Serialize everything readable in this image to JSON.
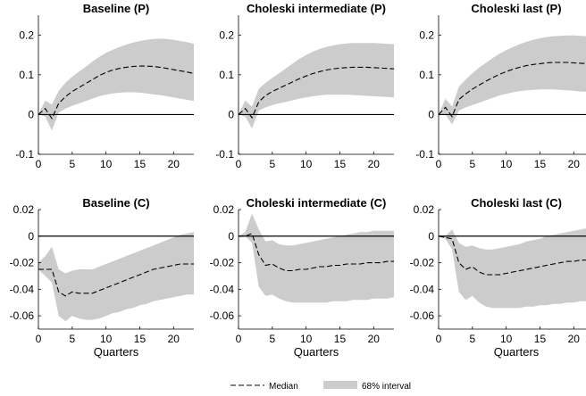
{
  "chart_data": [
    {
      "type": "area",
      "title": "Baseline (P)",
      "xlabel": "",
      "xlim": [
        0,
        23
      ],
      "ylim": [
        -0.1,
        0.25
      ],
      "xticks": [
        0,
        5,
        10,
        15,
        20
      ],
      "yticks": [
        -0.1,
        0,
        0.1,
        0.2
      ],
      "ytick_labels": [
        "-0.1",
        "0",
        "0.1",
        "0.2"
      ],
      "zero_line": true,
      "x": [
        0,
        1,
        2,
        3,
        4,
        5,
        6,
        7,
        8,
        9,
        10,
        11,
        12,
        13,
        14,
        15,
        16,
        17,
        18,
        19,
        20,
        21,
        22,
        23
      ],
      "series": [
        {
          "role": "median",
          "values": [
            0,
            0.015,
            -0.01,
            0.028,
            0.045,
            0.058,
            0.068,
            0.078,
            0.088,
            0.098,
            0.106,
            0.112,
            0.116,
            0.119,
            0.121,
            0.122,
            0.122,
            0.121,
            0.119,
            0.116,
            0.113,
            0.11,
            0.107,
            0.103
          ]
        },
        {
          "role": "lower",
          "values": [
            0,
            -0.005,
            -0.04,
            0.005,
            0.015,
            0.022,
            0.028,
            0.034,
            0.04,
            0.046,
            0.05,
            0.053,
            0.055,
            0.056,
            0.056,
            0.055,
            0.053,
            0.051,
            0.049,
            0.046,
            0.043,
            0.04,
            0.037,
            0.034
          ]
        },
        {
          "role": "upper",
          "values": [
            0,
            0.035,
            0.025,
            0.06,
            0.08,
            0.095,
            0.108,
            0.12,
            0.133,
            0.145,
            0.155,
            0.163,
            0.17,
            0.176,
            0.181,
            0.185,
            0.188,
            0.19,
            0.191,
            0.19,
            0.188,
            0.185,
            0.182,
            0.178
          ]
        }
      ]
    },
    {
      "type": "area",
      "title": "Choleski intermediate (P)",
      "xlabel": "",
      "xlim": [
        0,
        23
      ],
      "ylim": [
        -0.1,
        0.25
      ],
      "xticks": [
        0,
        5,
        10,
        15,
        20
      ],
      "yticks": [
        -0.1,
        0,
        0.1,
        0.2
      ],
      "ytick_labels": [
        "-0.1",
        "0",
        "0.1",
        "0.2"
      ],
      "zero_line": true,
      "x": [
        0,
        1,
        2,
        3,
        4,
        5,
        6,
        7,
        8,
        9,
        10,
        11,
        12,
        13,
        14,
        15,
        16,
        17,
        18,
        19,
        20,
        21,
        22,
        23
      ],
      "series": [
        {
          "role": "median",
          "values": [
            0,
            0.015,
            -0.008,
            0.032,
            0.048,
            0.058,
            0.066,
            0.074,
            0.082,
            0.09,
            0.097,
            0.103,
            0.108,
            0.112,
            0.115,
            0.117,
            0.118,
            0.119,
            0.119,
            0.119,
            0.118,
            0.117,
            0.116,
            0.115
          ]
        },
        {
          "role": "lower",
          "values": [
            0,
            -0.005,
            -0.035,
            0.01,
            0.018,
            0.024,
            0.028,
            0.032,
            0.036,
            0.04,
            0.043,
            0.046,
            0.048,
            0.05,
            0.05,
            0.05,
            0.05,
            0.049,
            0.048,
            0.047,
            0.046,
            0.045,
            0.044,
            0.043
          ]
        },
        {
          "role": "upper",
          "values": [
            0,
            0.035,
            0.02,
            0.065,
            0.08,
            0.092,
            0.104,
            0.116,
            0.128,
            0.14,
            0.15,
            0.158,
            0.165,
            0.17,
            0.174,
            0.177,
            0.179,
            0.18,
            0.18,
            0.18,
            0.18,
            0.179,
            0.178,
            0.177
          ]
        }
      ]
    },
    {
      "type": "area",
      "title": "Choleski last (P)",
      "xlabel": "",
      "xlim": [
        0,
        23
      ],
      "ylim": [
        -0.1,
        0.25
      ],
      "xticks": [
        0,
        5,
        10,
        15,
        20
      ],
      "yticks": [
        -0.1,
        0,
        0.1,
        0.2
      ],
      "ytick_labels": [
        "-0.1",
        "0",
        "0.1",
        "0.2"
      ],
      "zero_line": true,
      "x": [
        0,
        1,
        2,
        3,
        4,
        5,
        6,
        7,
        8,
        9,
        10,
        11,
        12,
        13,
        14,
        15,
        16,
        17,
        18,
        19,
        20,
        21,
        22,
        23
      ],
      "series": [
        {
          "role": "median",
          "values": [
            0,
            0.018,
            -0.005,
            0.038,
            0.052,
            0.064,
            0.074,
            0.084,
            0.093,
            0.101,
            0.108,
            0.114,
            0.119,
            0.123,
            0.126,
            0.128,
            0.13,
            0.131,
            0.131,
            0.131,
            0.13,
            0.129,
            0.128,
            0.127
          ]
        },
        {
          "role": "lower",
          "values": [
            0,
            0.0,
            -0.025,
            0.01,
            0.018,
            0.024,
            0.03,
            0.036,
            0.042,
            0.048,
            0.052,
            0.056,
            0.059,
            0.061,
            0.062,
            0.063,
            0.063,
            0.063,
            0.062,
            0.061,
            0.06,
            0.058,
            0.057,
            0.055
          ]
        },
        {
          "role": "upper",
          "values": [
            0,
            0.04,
            0.02,
            0.07,
            0.088,
            0.104,
            0.118,
            0.13,
            0.142,
            0.153,
            0.162,
            0.17,
            0.177,
            0.183,
            0.188,
            0.192,
            0.195,
            0.197,
            0.198,
            0.199,
            0.199,
            0.198,
            0.197,
            0.196
          ]
        }
      ]
    },
    {
      "type": "area",
      "title": "Baseline (C)",
      "xlabel": "Quarters",
      "xlim": [
        0,
        23
      ],
      "ylim": [
        -0.07,
        0.02
      ],
      "xticks": [
        0,
        5,
        10,
        15,
        20
      ],
      "yticks": [
        -0.06,
        -0.04,
        -0.02,
        0,
        0.02
      ],
      "ytick_labels": [
        "-0.06",
        "-0.04",
        "-0.02",
        "0",
        "0.02"
      ],
      "zero_line": true,
      "x": [
        0,
        1,
        2,
        3,
        4,
        5,
        6,
        7,
        8,
        9,
        10,
        11,
        12,
        13,
        14,
        15,
        16,
        17,
        18,
        19,
        20,
        21,
        22,
        23
      ],
      "series": [
        {
          "role": "median",
          "values": [
            -0.025,
            -0.025,
            -0.025,
            -0.042,
            -0.045,
            -0.042,
            -0.043,
            -0.043,
            -0.043,
            -0.041,
            -0.039,
            -0.037,
            -0.035,
            -0.033,
            -0.031,
            -0.029,
            -0.027,
            -0.025,
            -0.024,
            -0.023,
            -0.022,
            -0.021,
            -0.021,
            -0.021
          ]
        },
        {
          "role": "lower",
          "values": [
            -0.025,
            -0.03,
            -0.035,
            -0.06,
            -0.064,
            -0.06,
            -0.062,
            -0.063,
            -0.063,
            -0.062,
            -0.06,
            -0.058,
            -0.057,
            -0.055,
            -0.054,
            -0.052,
            -0.051,
            -0.049,
            -0.048,
            -0.047,
            -0.046,
            -0.045,
            -0.044,
            -0.044
          ]
        },
        {
          "role": "upper",
          "values": [
            -0.02,
            -0.015,
            -0.008,
            -0.025,
            -0.028,
            -0.026,
            -0.025,
            -0.025,
            -0.025,
            -0.023,
            -0.021,
            -0.019,
            -0.017,
            -0.015,
            -0.013,
            -0.011,
            -0.009,
            -0.007,
            -0.005,
            -0.003,
            -0.001,
            0.001,
            0.002,
            0.003
          ]
        }
      ]
    },
    {
      "type": "area",
      "title": "Choleski intermediate (C)",
      "xlabel": "Quarters",
      "xlim": [
        0,
        23
      ],
      "ylim": [
        -0.07,
        0.02
      ],
      "xticks": [
        0,
        5,
        10,
        15,
        20
      ],
      "yticks": [
        -0.06,
        -0.04,
        -0.02,
        0,
        0.02
      ],
      "ytick_labels": [
        "-0.06",
        "-0.04",
        "-0.02",
        "0",
        "0.02"
      ],
      "zero_line": true,
      "x": [
        0,
        1,
        2,
        3,
        4,
        5,
        6,
        7,
        8,
        9,
        10,
        11,
        12,
        13,
        14,
        15,
        16,
        17,
        18,
        19,
        20,
        21,
        22,
        23
      ],
      "series": [
        {
          "role": "median",
          "values": [
            0,
            0.0,
            0.002,
            -0.014,
            -0.022,
            -0.021,
            -0.024,
            -0.026,
            -0.026,
            -0.025,
            -0.025,
            -0.024,
            -0.023,
            -0.023,
            -0.022,
            -0.022,
            -0.021,
            -0.021,
            -0.021,
            -0.02,
            -0.02,
            -0.02,
            -0.019,
            -0.019
          ]
        },
        {
          "role": "lower",
          "values": [
            0,
            0.0,
            -0.005,
            -0.038,
            -0.045,
            -0.044,
            -0.047,
            -0.049,
            -0.05,
            -0.05,
            -0.05,
            -0.05,
            -0.05,
            -0.05,
            -0.049,
            -0.049,
            -0.049,
            -0.048,
            -0.048,
            -0.048,
            -0.047,
            -0.047,
            -0.047,
            -0.046
          ]
        },
        {
          "role": "upper",
          "values": [
            0,
            0.003,
            0.017,
            0.005,
            -0.004,
            -0.003,
            -0.006,
            -0.007,
            -0.007,
            -0.006,
            -0.005,
            -0.004,
            -0.003,
            -0.002,
            -0.001,
            0.0,
            0.001,
            0.002,
            0.003,
            0.003,
            0.004,
            0.004,
            0.004,
            0.004
          ]
        }
      ]
    },
    {
      "type": "area",
      "title": "Choleski last (C)",
      "xlabel": "Quarters",
      "xlim": [
        0,
        23
      ],
      "ylim": [
        -0.07,
        0.02
      ],
      "xticks": [
        0,
        5,
        10,
        15,
        20
      ],
      "yticks": [
        -0.06,
        -0.04,
        -0.02,
        0,
        0.02
      ],
      "ytick_labels": [
        "-0.06",
        "-0.04",
        "-0.02",
        "0",
        "0.02"
      ],
      "zero_line": true,
      "x": [
        0,
        1,
        2,
        3,
        4,
        5,
        6,
        7,
        8,
        9,
        10,
        11,
        12,
        13,
        14,
        15,
        16,
        17,
        18,
        19,
        20,
        21,
        22,
        23
      ],
      "series": [
        {
          "role": "median",
          "values": [
            0,
            -0.001,
            -0.002,
            -0.02,
            -0.025,
            -0.023,
            -0.027,
            -0.029,
            -0.029,
            -0.029,
            -0.028,
            -0.027,
            -0.026,
            -0.025,
            -0.024,
            -0.023,
            -0.022,
            -0.021,
            -0.02,
            -0.019,
            -0.019,
            -0.018,
            -0.018,
            -0.018
          ]
        },
        {
          "role": "lower",
          "values": [
            0,
            -0.002,
            -0.01,
            -0.042,
            -0.048,
            -0.045,
            -0.05,
            -0.053,
            -0.054,
            -0.054,
            -0.054,
            -0.054,
            -0.054,
            -0.053,
            -0.053,
            -0.052,
            -0.052,
            -0.051,
            -0.051,
            -0.05,
            -0.05,
            -0.049,
            -0.049,
            -0.049
          ]
        },
        {
          "role": "upper",
          "values": [
            0,
            0.0,
            0.005,
            -0.005,
            -0.008,
            -0.007,
            -0.009,
            -0.01,
            -0.01,
            -0.009,
            -0.008,
            -0.007,
            -0.006,
            -0.004,
            -0.003,
            -0.002,
            0.0,
            0.001,
            0.002,
            0.003,
            0.004,
            0.005,
            0.006,
            0.006
          ]
        }
      ]
    }
  ],
  "legend": {
    "median_label": "Median",
    "interval_label": "68% interval"
  },
  "colors": {
    "band": "#cccccc",
    "median": "#000000",
    "axis": "#000000"
  }
}
